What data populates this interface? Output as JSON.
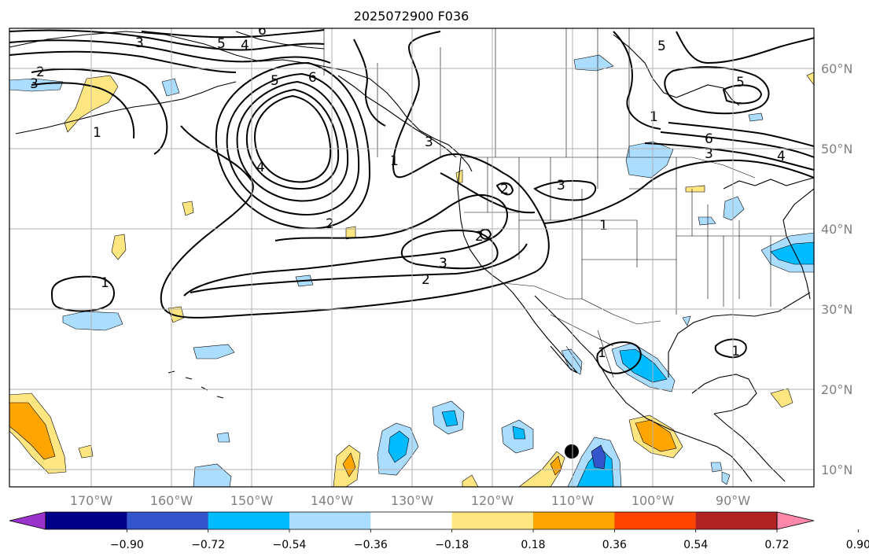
{
  "title": "2025072900 F036",
  "longitude_labels": [
    "170°W",
    "160°W",
    "150°W",
    "140°W",
    "130°W",
    "120°W",
    "110°W",
    "100°W",
    "90°W"
  ],
  "latitude_labels": [
    "60°N",
    "50°N",
    "40°N",
    "30°N",
    "20°N",
    "10°N"
  ],
  "colorbar": {
    "ticks": [
      "−0.90",
      "−0.72",
      "−0.54",
      "−0.36",
      "−0.18",
      "0.18",
      "0.36",
      "0.54",
      "0.72",
      "0.90"
    ],
    "colors": [
      "#9933cc",
      "#000088",
      "#3355cc",
      "#00bbff",
      "#aaddff",
      "#ffffff",
      "#ffe680",
      "#ffa500",
      "#ff4400",
      "#b22222",
      "#ff88aa"
    ]
  },
  "contour_labels": [
    "6",
    "5",
    "4",
    "3",
    "2",
    "3",
    "6",
    "5",
    "4",
    "1",
    "1",
    "2",
    "3",
    "2",
    "1",
    "3",
    "2",
    "2",
    "1",
    "5",
    "6",
    "3",
    "4",
    "1",
    "5",
    "1",
    "1",
    "3"
  ],
  "colors": {
    "land_outline": "#000000",
    "grid": "#b0b0b0",
    "contour": "#000000"
  }
}
